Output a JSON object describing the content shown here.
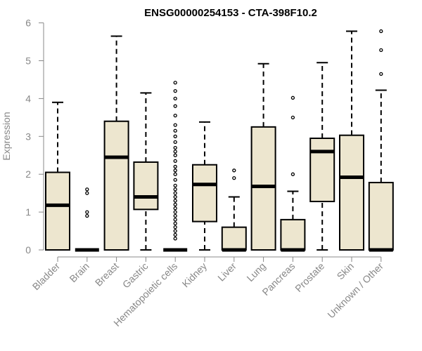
{
  "chart_data": {
    "type": "boxplot",
    "title": "ENSG00000254153 - CTA-398F10.2",
    "xlabel": "",
    "ylabel": "Expression",
    "ylim": [
      0,
      6
    ],
    "yticks": [
      0,
      1,
      2,
      3,
      4,
      5,
      6
    ],
    "grid": false,
    "colors": {
      "box_fill": "#ede6cf",
      "stroke": "#000000",
      "axis": "#888888"
    },
    "categories": [
      "Bladder",
      "Brain",
      "Breast",
      "Gastric",
      "Hematopoietic cells",
      "Kidney",
      "Liver",
      "Lung",
      "Pancreas",
      "Prostate",
      "Skin",
      "Unknown / Other"
    ],
    "boxes": [
      {
        "min": 0,
        "q1": 0,
        "median": 1.18,
        "q3": 2.05,
        "max": 3.9,
        "outliers": []
      },
      {
        "min": 0,
        "q1": 0,
        "median": 0,
        "q3": 0,
        "max": 0,
        "outliers": [
          0.9,
          1.0,
          1.5,
          1.6
        ]
      },
      {
        "min": 0,
        "q1": 0,
        "median": 2.45,
        "q3": 3.4,
        "max": 5.65,
        "outliers": []
      },
      {
        "min": 0,
        "q1": 1.07,
        "median": 1.4,
        "q3": 2.32,
        "max": 4.15,
        "outliers": []
      },
      {
        "min": 0,
        "q1": 0,
        "median": 0,
        "q3": 0,
        "max": 0,
        "outliers": [
          0.3,
          0.4,
          0.5,
          0.6,
          0.7,
          0.8,
          0.9,
          1.0,
          1.1,
          1.2,
          1.3,
          1.4,
          1.5,
          1.6,
          1.7,
          1.85,
          2.0,
          2.1,
          2.2,
          2.35,
          2.5,
          2.6,
          2.7,
          2.85,
          3.0,
          3.15,
          3.3,
          3.55,
          3.8,
          4.0,
          4.2,
          4.42
        ]
      },
      {
        "min": 0,
        "q1": 0.75,
        "median": 1.73,
        "q3": 2.25,
        "max": 3.38,
        "outliers": []
      },
      {
        "min": 0,
        "q1": 0,
        "median": 0,
        "q3": 0.6,
        "max": 1.4,
        "outliers": [
          1.9,
          2.1
        ]
      },
      {
        "min": 0,
        "q1": 0,
        "median": 1.68,
        "q3": 3.25,
        "max": 4.92,
        "outliers": []
      },
      {
        "min": 0,
        "q1": 0,
        "median": 0,
        "q3": 0.8,
        "max": 1.55,
        "outliers": [
          2.0,
          3.5,
          4.02
        ]
      },
      {
        "min": 0,
        "q1": 1.28,
        "median": 2.6,
        "q3": 2.95,
        "max": 4.95,
        "outliers": []
      },
      {
        "min": 0,
        "q1": 0,
        "median": 1.92,
        "q3": 3.03,
        "max": 5.78,
        "outliers": []
      },
      {
        "min": 0,
        "q1": 0,
        "median": 0,
        "q3": 1.78,
        "max": 4.22,
        "outliers": [
          4.65,
          5.28,
          5.78
        ]
      }
    ]
  }
}
